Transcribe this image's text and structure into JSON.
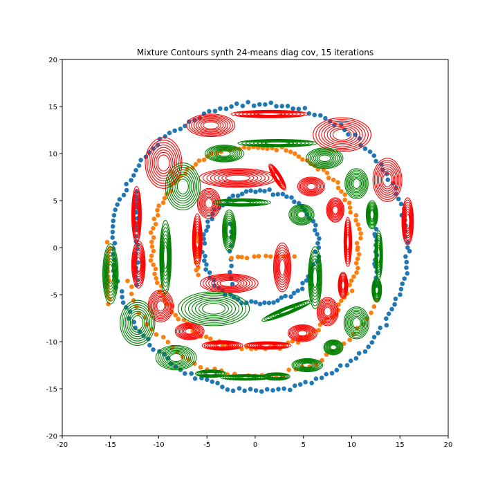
{
  "chart_data": {
    "type": "scatter",
    "title": "Mixture Contours synth 24-means diag cov, 15 iterations",
    "xlabel": "",
    "ylabel": "",
    "xlim": [
      -20,
      20
    ],
    "ylim": [
      -20,
      20
    ],
    "x_ticks": [
      -20,
      -15,
      -10,
      -5,
      0,
      5,
      10,
      15,
      20
    ],
    "y_ticks": [
      -20,
      -15,
      -10,
      -5,
      0,
      5,
      10,
      15,
      20
    ],
    "grid": false,
    "legend": "none",
    "colors": {
      "points_a": "#1f77b4",
      "points_b": "#ff7f0e",
      "contour_a": "#ff0000",
      "contour_b": "#008000"
    },
    "point_series": [
      {
        "color_key": "points_a",
        "rings": [
          {
            "cx": 0.5,
            "cy": 0,
            "r": 15.3,
            "from_deg": 0,
            "to_deg": 360,
            "step_deg": 2.2
          },
          {
            "cx": 0.5,
            "cy": 0,
            "r": 6.0,
            "from_deg": 0,
            "to_deg": 360,
            "step_deg": 4.5
          }
        ],
        "segments": [
          {
            "x1": -12.3,
            "y1": 6,
            "x2": -12.3,
            "y2": -4,
            "n": 22
          },
          {
            "x1": 12.5,
            "y1": 2,
            "x2": 12.5,
            "y2": -4,
            "n": 14
          },
          {
            "x1": -2.5,
            "y1": 2.5,
            "x2": -2.5,
            "y2": -4,
            "n": 10
          }
        ]
      },
      {
        "color_key": "points_b",
        "rings": [
          {
            "cx": 0,
            "cy": 0,
            "r": 10.8,
            "from_deg": 0,
            "to_deg": 360,
            "step_deg": 2.6
          },
          {
            "cx": 0,
            "cy": 0,
            "r": 13.7,
            "from_deg": 195,
            "to_deg": 340,
            "step_deg": 3
          }
        ],
        "segments": [
          {
            "x1": -15.2,
            "y1": 0.5,
            "x2": -15.2,
            "y2": -6,
            "n": 16
          },
          {
            "x1": -2.5,
            "y1": -1,
            "x2": 4,
            "y2": -1,
            "n": 12
          },
          {
            "x1": -6,
            "y1": 1.5,
            "x2": -6,
            "y2": -3,
            "n": 10
          }
        ]
      }
    ],
    "red_ellipses": [
      [
        -4.6,
        13,
        2.5,
        1.2,
        0
      ],
      [
        1.5,
        14.2,
        4,
        0.4,
        0
      ],
      [
        9,
        12,
        3,
        1.8,
        0
      ],
      [
        -9.5,
        9,
        1.9,
        2.7,
        0
      ],
      [
        -1.8,
        7.4,
        4,
        1,
        0
      ],
      [
        2.3,
        7.5,
        0.4,
        1.6,
        0.55
      ],
      [
        5.8,
        6.5,
        1.4,
        1,
        0
      ],
      [
        13.7,
        7.2,
        1.5,
        2.3,
        0
      ],
      [
        -4.8,
        4.7,
        1.2,
        1.6,
        0
      ],
      [
        8.3,
        4,
        0.9,
        1.3,
        0
      ],
      [
        -12.3,
        3.5,
        0.5,
        3,
        0
      ],
      [
        15.8,
        2.8,
        0.6,
        2.5,
        0
      ],
      [
        -6,
        0.8,
        0.5,
        2.8,
        0
      ],
      [
        9.6,
        0.6,
        0.4,
        2.6,
        0
      ],
      [
        -12.1,
        -1.8,
        0.7,
        2.5,
        0
      ],
      [
        2.8,
        -2.1,
        0.9,
        2.6,
        0
      ],
      [
        -2.7,
        -3.8,
        3,
        1,
        0
      ],
      [
        9.1,
        -4,
        0.5,
        1.4,
        0
      ],
      [
        -9.8,
        -6.2,
        1.3,
        1.7,
        0
      ],
      [
        7.5,
        -6.8,
        1.1,
        1.5,
        0
      ],
      [
        -6.8,
        -8.9,
        1.5,
        0.9,
        0
      ],
      [
        4.9,
        -9.1,
        1.5,
        0.9,
        0
      ],
      [
        -3.4,
        -10.4,
        2.1,
        0.5,
        0
      ],
      [
        1.3,
        -10.4,
        2.4,
        0.4,
        0
      ]
    ],
    "green_ellipses": [
      [
        -3.2,
        10,
        2,
        0.9,
        0
      ],
      [
        2.3,
        11.1,
        4.1,
        0.4,
        0
      ],
      [
        7.2,
        9.5,
        1.9,
        1.1,
        0
      ],
      [
        -7.5,
        6.5,
        1.8,
        2.5,
        0
      ],
      [
        10.5,
        6.8,
        1.2,
        1.6,
        0
      ],
      [
        -1.4,
        4.8,
        3,
        0.4,
        0
      ],
      [
        4.8,
        3.5,
        1.3,
        1.1,
        0
      ],
      [
        12.1,
        3.5,
        0.6,
        1.5,
        0
      ],
      [
        -2.7,
        1.8,
        0.7,
        2.2,
        0
      ],
      [
        -9.3,
        -1,
        0.6,
        3.9,
        0
      ],
      [
        12.8,
        -0.8,
        0.4,
        2.6,
        0
      ],
      [
        6.2,
        -3.2,
        0.7,
        3.3,
        0
      ],
      [
        -15,
        -2.8,
        0.8,
        3.2,
        0
      ],
      [
        12.6,
        -4.5,
        0.5,
        1.3,
        0
      ],
      [
        -4.3,
        -6.5,
        3.7,
        1.8,
        0
      ],
      [
        3.3,
        -6.7,
        2.8,
        0.4,
        0.38
      ],
      [
        -12.2,
        -8,
        1.8,
        2.4,
        0
      ],
      [
        10.5,
        -8,
        1.3,
        1.7,
        0
      ],
      [
        8.1,
        -10.6,
        1,
        0.8,
        0
      ],
      [
        -8.2,
        -11.7,
        2.1,
        1.3,
        0
      ],
      [
        5.4,
        -12.5,
        1.6,
        0.7,
        0
      ],
      [
        -4.6,
        -13.4,
        1.6,
        0.4,
        0
      ],
      [
        -1,
        -13.8,
        2.6,
        0.3,
        0
      ],
      [
        2.2,
        -13.7,
        1.4,
        0.4,
        0
      ]
    ]
  }
}
